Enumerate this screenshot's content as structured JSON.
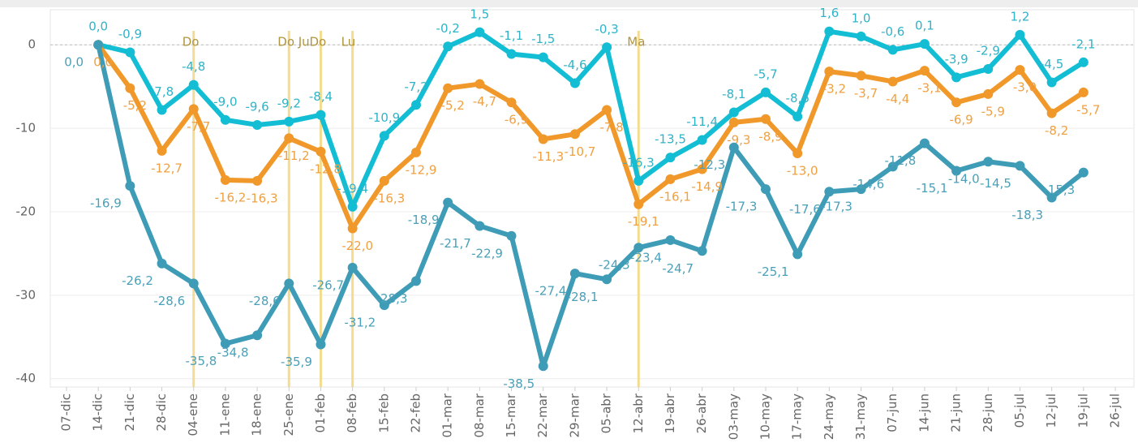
{
  "chart_data": {
    "type": "line",
    "categories": [
      "07-dic",
      "14-dic",
      "21-dic",
      "28-dic",
      "04-ene",
      "11-ene",
      "18-ene",
      "25-ene",
      "01-feb",
      "08-feb",
      "15-feb",
      "22-feb",
      "01-mar",
      "08-mar",
      "15-mar",
      "22-mar",
      "29-mar",
      "05-abr",
      "12-abr",
      "19-abr",
      "26-abr",
      "03-may",
      "10-may",
      "17-may",
      "24-may",
      "31-may",
      "07-jun",
      "14-jun",
      "21-jun",
      "28-jun",
      "05-jul",
      "12-jul",
      "19-jul",
      "26-jul"
    ],
    "series": [
      {
        "color": "#13bdd3",
        "values": [
          null,
          0,
          -0.9,
          -7.8,
          -4.8,
          -9.0,
          -9.6,
          -9.2,
          -8.4,
          -19.4,
          -10.9,
          -7.2,
          -0.2,
          1.5,
          -1.1,
          -1.5,
          -4.6,
          -0.3,
          -16.3,
          -13.5,
          -11.4,
          -8.1,
          -5.7,
          -8.6,
          1.6,
          1.0,
          -0.6,
          0.1,
          -3.9,
          -2.9,
          1.2,
          -4.5,
          -2.1,
          null
        ],
        "value_labels": [
          null,
          "0,0",
          "-0,9",
          "-7,8",
          "-4,8",
          "-9,0",
          "-9,6",
          "-9,2",
          "-8,4",
          "-19,4",
          "-10,9",
          "-7,2",
          "-0,2",
          "1,5",
          "-1,1",
          "-1,5",
          "-4,6",
          "-0,3",
          "-16,3",
          "-13,5",
          "-11,4",
          "-8,1",
          "-5,7",
          "-8,6",
          "1,6",
          "1,0",
          "-0,6",
          "0,1",
          "-3,9",
          "-2,9",
          "1,2",
          "-4,5",
          "-2,1",
          null
        ]
      },
      {
        "color": "#f0982a",
        "values": [
          null,
          0,
          -5.2,
          -12.7,
          -7.7,
          -16.2,
          -16.3,
          -11.2,
          -12.8,
          -22.0,
          -16.3,
          -12.9,
          -5.2,
          -4.7,
          -6.9,
          -11.3,
          -10.7,
          -7.8,
          -19.1,
          -16.1,
          -14.9,
          -9.3,
          -8.9,
          -13.0,
          -3.2,
          -3.7,
          -4.4,
          -3.1,
          -6.9,
          -5.9,
          -3.0,
          -8.2,
          -5.7,
          null
        ],
        "value_labels": [
          null,
          "0,0",
          "-5,2",
          "-12,7",
          "-7,7",
          "-16,2",
          "-16,3",
          "-11,2",
          "-12,8",
          "-22,0",
          "-16,3",
          "-12,9",
          "-5,2",
          "-4,7",
          "-6,9",
          "-11,3",
          "-10,7",
          "-7,8",
          "-19,1",
          "-16,1",
          "-14,9",
          "-9,3",
          "-8,9",
          "-13,0",
          "-3,2",
          "-3,7",
          "-4,4",
          "-3,1",
          "-6,9",
          "-5,9",
          "-3,0",
          "-8,2",
          "-5,7",
          null
        ]
      },
      {
        "color": "#3f9cb6",
        "values": [
          null,
          0,
          -16.9,
          -26.2,
          -28.6,
          -35.8,
          -34.8,
          -28.6,
          -35.9,
          -26.7,
          -31.2,
          -28.3,
          -18.9,
          -21.7,
          -22.9,
          -38.5,
          -27.4,
          -28.1,
          -24.3,
          -23.4,
          -24.7,
          -12.3,
          -17.3,
          -25.1,
          -17.6,
          -17.3,
          -14.6,
          -11.8,
          -15.1,
          -14.0,
          -14.5,
          -18.3,
          -15.3,
          null
        ],
        "value_labels": [
          null,
          "0,0",
          "-16,9",
          "-26,2",
          "-28,6",
          "-35,8",
          "-34,8",
          "-28,6",
          "-35,9",
          "-26,7",
          "-31,2",
          "-28,3",
          "-18,9",
          "-21,7",
          "-22,9",
          "-38,5",
          "-27,4",
          "-28,1",
          "-24,3",
          "-23,4",
          "-24,7",
          "-12,3",
          "-17,3",
          "-25,1",
          "-17,6",
          "-17,3",
          "-14,6",
          "-11,8",
          "-15,1",
          "-14,0",
          "-14,5",
          "-18,3",
          "-15,3",
          null
        ]
      }
    ],
    "annotations": [
      {
        "x": "04-ene",
        "label": "Do"
      },
      {
        "x": "25-ene",
        "label": "Do Ju"
      },
      {
        "x": "01-feb",
        "label": "Do"
      },
      {
        "x": "08-feb",
        "label": "Lu"
      },
      {
        "x": "12-abr",
        "label": "Ma"
      }
    ],
    "annotation_color": "#f3dc92",
    "ylim": [
      -41,
      4.2
    ],
    "yticks": [
      0,
      -10,
      -20,
      -30,
      -40
    ],
    "grid": true
  }
}
